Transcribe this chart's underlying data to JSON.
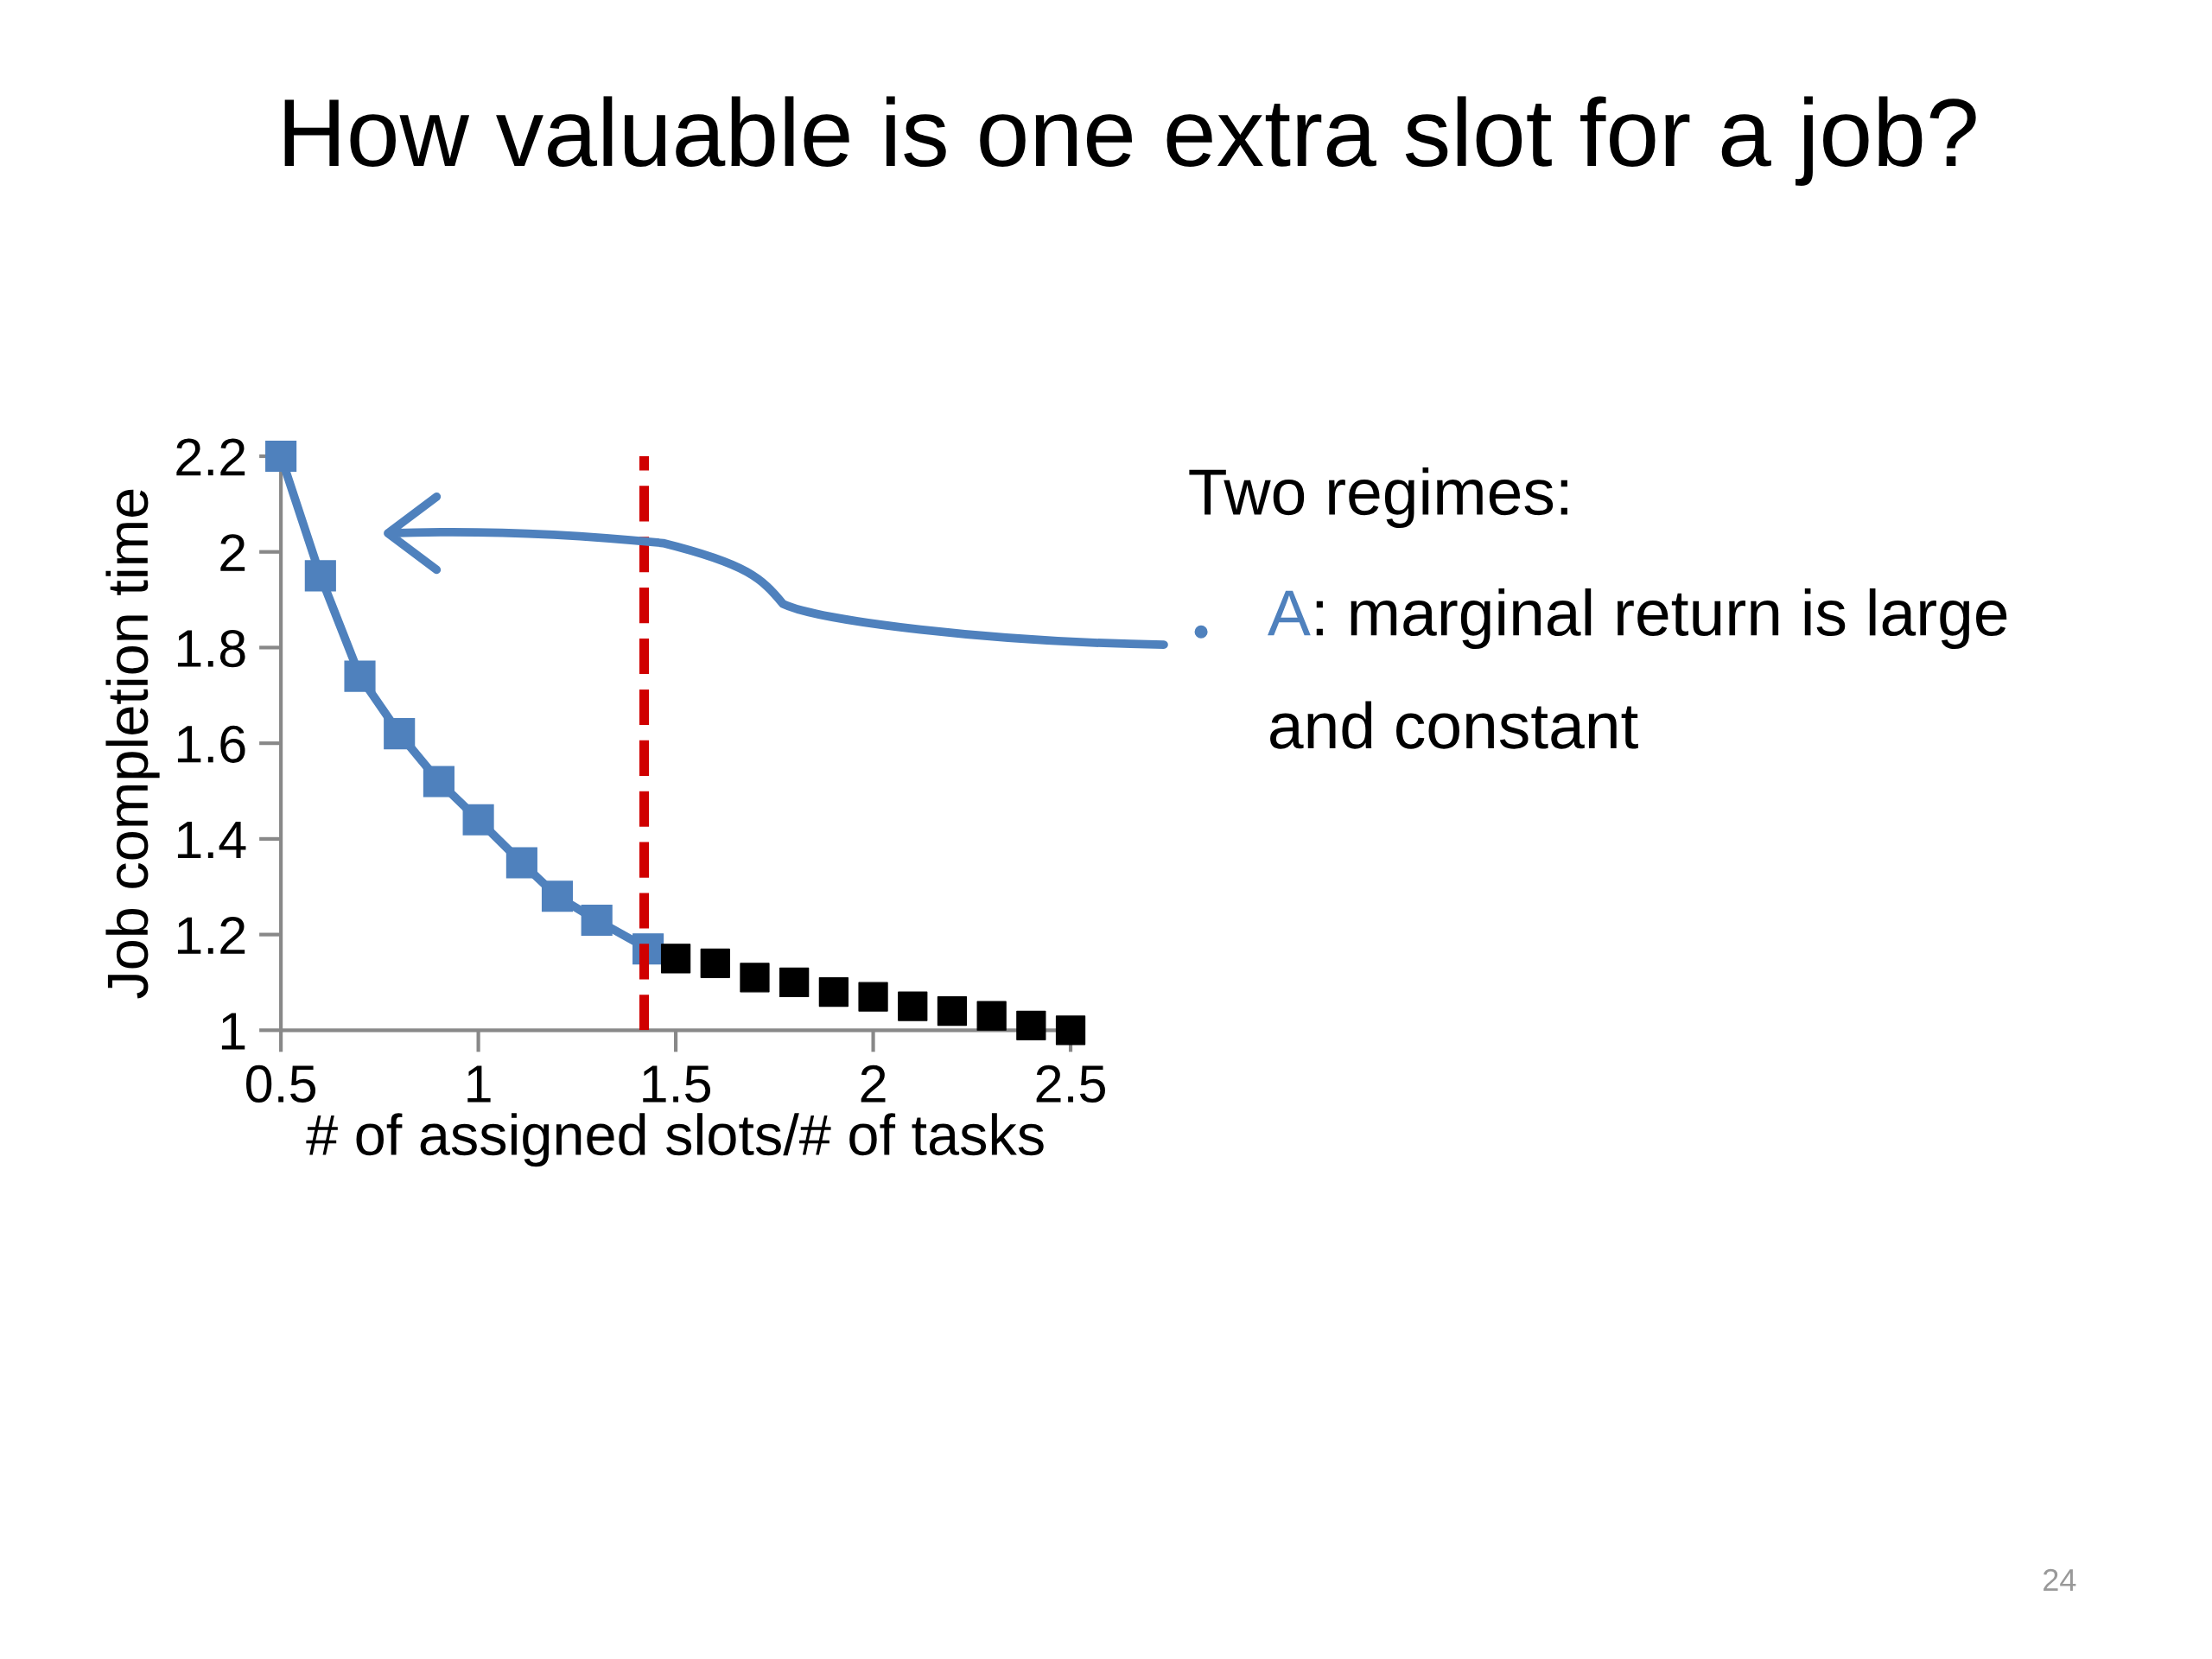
{
  "chart_data": {
    "type": "line",
    "title": "How valuable is one extra slot for a job?",
    "xlabel": "# of assigned slots/# of tasks",
    "ylabel": "Job completion time",
    "series": [
      {
        "color": "#4f81bd",
        "x": [
          0.5,
          0.6,
          0.7,
          0.8,
          0.9,
          1,
          1.11,
          1.2,
          1.3,
          1.43
        ],
        "values": [
          2.2,
          1.95,
          1.74,
          1.62,
          1.52,
          1.44,
          1.35,
          1.28,
          1.23,
          1.17
        ]
      },
      {
        "type": "scatter",
        "color": "#000000",
        "x": [
          1.5,
          1.6,
          1.7,
          1.8,
          1.9,
          2,
          2.1,
          2.2,
          2.3,
          2.4,
          2.5
        ],
        "values": [
          1.15,
          1.14,
          1.11,
          1.1,
          1.08,
          1.07,
          1.05,
          1.04,
          1.03,
          1.01,
          1
        ]
      }
    ],
    "marker": "square",
    "line_style": "solid",
    "grid": false,
    "xlim": [
      0.5,
      2.5
    ],
    "ylim": [
      1,
      2.2
    ],
    "xticks": [
      0.5,
      1,
      1.5,
      2,
      2.5
    ],
    "yticks": [
      1,
      1.2,
      1.4,
      1.6,
      1.8,
      2,
      2.2
    ],
    "ref_lines": [
      {
        "axis": "x",
        "value": 1.42,
        "color": "#d00000",
        "line_style": "dashed"
      }
    ],
    "annotations": [
      "Two regimes:",
      "•",
      "A",
      ": marginal return is large\nand constant",
      "24"
    ]
  }
}
